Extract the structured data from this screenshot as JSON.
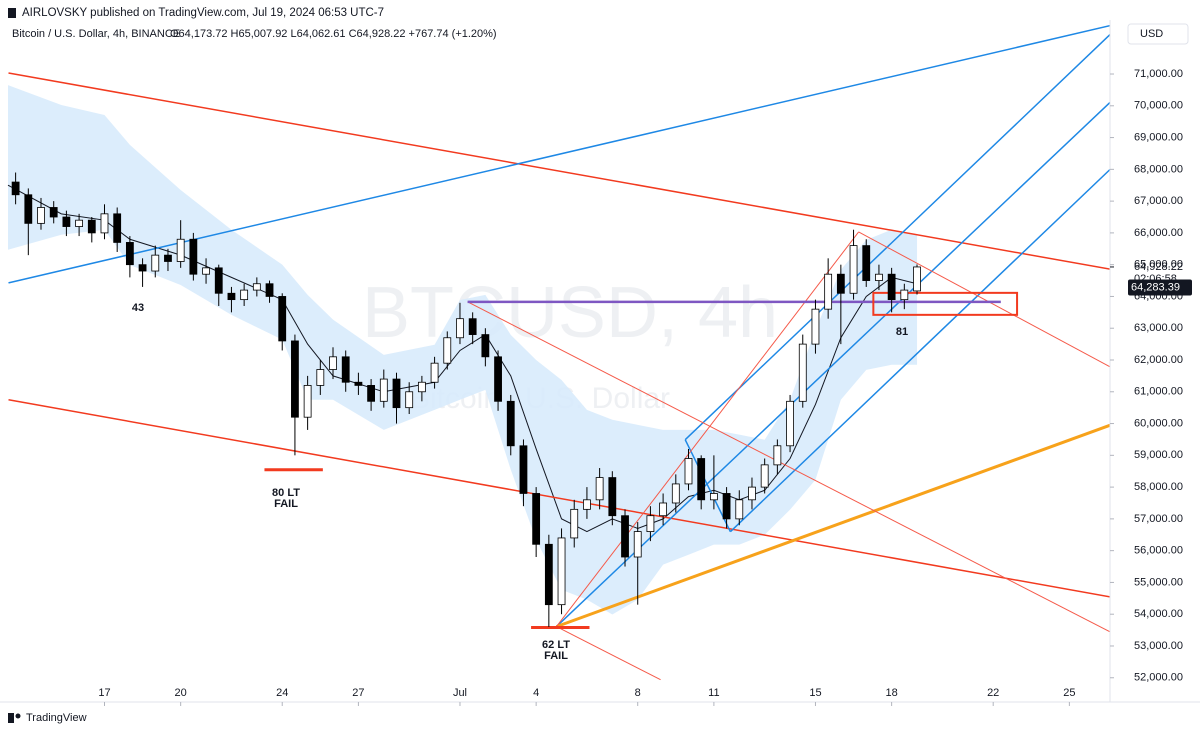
{
  "chart_data": {
    "type": "candlestick",
    "header": "AIRLOVSKY published on TradingView.com, Jul 19, 2024 06:53 UTC-7",
    "symbol": "Bitcoin / U.S. Dollar, 4h, BINANCE",
    "ohlc_legend": "O64,173.72 H65,007.92 L64,062.61 C64,928.22 +767.74 (+1.20%)",
    "watermark": "BTCUSD, 4h",
    "watermark_subtitle": "Bitcoin / U.S. Dollar",
    "currency": "USD",
    "footer": "TradingView",
    "countdown": "02:06:58",
    "price_labels": [
      {
        "value": 64928.22,
        "label": "64,928.22"
      },
      {
        "value": 64283.39,
        "label": "64,283.39"
      }
    ],
    "annotations": [
      "43",
      "80 LT",
      "FAIL",
      "62 LT",
      "FAIL",
      "81"
    ],
    "xlim": [
      13.2,
      56.6
    ],
    "xticks": [
      17,
      20,
      24,
      27,
      {
        "value": 31,
        "label": "Jul"
      },
      {
        "value": 34,
        "label": "4"
      },
      {
        "value": 38,
        "label": "8"
      },
      {
        "value": 41,
        "label": "11"
      },
      {
        "value": 45,
        "label": "15"
      },
      {
        "value": 48,
        "label": "18"
      },
      {
        "value": 52,
        "label": "22"
      },
      {
        "value": 55,
        "label": "25"
      }
    ],
    "ylim": [
      51300,
      72700
    ],
    "yticks": [
      {
        "value": 52000,
        "label": "52,000.00"
      },
      {
        "value": 53000,
        "label": "53,000.00"
      },
      {
        "value": 54000,
        "label": "54,000.00"
      },
      {
        "value": 55000,
        "label": "55,000.00"
      },
      {
        "value": 56000,
        "label": "56,000.00"
      },
      {
        "value": 57000,
        "label": "57,000.00"
      },
      {
        "value": 58000,
        "label": "58,000.00"
      },
      {
        "value": 59000,
        "label": "59,000.00"
      },
      {
        "value": 60000,
        "label": "60,000.00"
      },
      {
        "value": 61000,
        "label": "61,000.00"
      },
      {
        "value": 62000,
        "label": "62,000.00"
      },
      {
        "value": 63000,
        "label": "63,000.00"
      },
      {
        "value": 64000,
        "label": "64,000.00"
      },
      {
        "value": 65000,
        "label": "65,000.00"
      },
      {
        "value": 66000,
        "label": "66,000.00"
      },
      {
        "value": 67000,
        "label": "67,000.00"
      },
      {
        "value": 68000,
        "label": "68,000.00"
      },
      {
        "value": 69000,
        "label": "69,000.00"
      },
      {
        "value": 70000,
        "label": "70,000.00"
      },
      {
        "value": 71000,
        "label": "71,000.00"
      }
    ],
    "grid": false,
    "up_color": "#ffffff",
    "down_color": "#000000",
    "wick_color": "#000000",
    "candles": {
      "x": [
        13.5,
        14,
        14.5,
        15,
        15.5,
        16,
        16.5,
        17,
        17.5,
        18,
        18.5,
        19,
        19.5,
        20,
        20.5,
        21,
        21.5,
        22,
        22.5,
        23,
        23.5,
        24,
        24.5,
        25,
        25.5,
        26,
        26.5,
        27,
        27.5,
        28,
        28.5,
        29,
        29.5,
        30,
        30.5,
        31,
        31.5,
        32,
        32.5,
        33,
        33.5,
        34,
        34.5,
        35,
        35.5,
        36,
        36.5,
        37,
        37.5,
        38,
        38.5,
        39,
        39.5,
        40,
        40.5,
        41,
        41.5,
        42,
        42.5,
        43,
        43.5,
        44,
        44.5,
        45,
        45.5,
        46,
        46.5,
        47,
        47.5,
        48,
        48.5,
        49
      ],
      "open": [
        67600,
        67200,
        66300,
        66800,
        66500,
        66200,
        66400,
        66000,
        66600,
        65700,
        65000,
        64800,
        65300,
        65100,
        65800,
        64700,
        64900,
        64100,
        63900,
        64200,
        64400,
        64000,
        62600,
        60200,
        61200,
        61700,
        62100,
        61300,
        61200,
        60700,
        61400,
        60500,
        61000,
        61300,
        61900,
        62700,
        63300,
        62800,
        62100,
        60700,
        59300,
        57800,
        56200,
        54300,
        56400,
        57300,
        57600,
        58300,
        57100,
        55800,
        56600,
        57100,
        57500,
        58100,
        58900,
        57600,
        57800,
        57000,
        57600,
        58000,
        58700,
        59300,
        60700,
        62500,
        63600,
        64700,
        64100,
        65600,
        64500,
        64700,
        63900,
        64173.72
      ],
      "high": [
        67900,
        67400,
        67100,
        67000,
        66700,
        66600,
        66500,
        66900,
        66800,
        65900,
        65200,
        65600,
        65500,
        66400,
        66000,
        65200,
        65000,
        64300,
        64400,
        64600,
        64500,
        64100,
        62800,
        61500,
        62000,
        62400,
        62300,
        61600,
        61400,
        61700,
        61600,
        61300,
        61500,
        62100,
        62900,
        63800,
        63500,
        63000,
        62300,
        60900,
        59500,
        58000,
        56500,
        56700,
        57600,
        58000,
        58600,
        58500,
        57300,
        56900,
        57400,
        57800,
        58400,
        59200,
        59000,
        59000,
        58000,
        57900,
        58300,
        58900,
        59500,
        60900,
        62800,
        63900,
        65200,
        65000,
        66100,
        65800,
        65000,
        64900,
        64400,
        65007.92
      ],
      "low": [
        66900,
        65300,
        66100,
        66300,
        65900,
        65900,
        65700,
        65800,
        65400,
        64600,
        64300,
        64600,
        64800,
        64900,
        64500,
        64400,
        63700,
        63500,
        63700,
        64000,
        63800,
        62300,
        59000,
        59800,
        60900,
        61400,
        61000,
        60900,
        60400,
        60500,
        60000,
        60300,
        60700,
        61100,
        61700,
        62500,
        62500,
        61800,
        60400,
        59000,
        57400,
        55800,
        53600,
        54000,
        56100,
        57000,
        57300,
        56800,
        55500,
        54300,
        56300,
        56800,
        57200,
        57900,
        57300,
        57300,
        56700,
        56800,
        57300,
        57800,
        58400,
        59100,
        60500,
        62200,
        63300,
        62500,
        63900,
        64300,
        64200,
        63500,
        63600,
        64062.61
      ],
      "close": [
        67200,
        66300,
        66800,
        66500,
        66200,
        66400,
        66000,
        66600,
        65700,
        65000,
        64800,
        65300,
        65100,
        65800,
        64700,
        64900,
        64100,
        63900,
        64200,
        64400,
        64000,
        62600,
        60200,
        61200,
        61700,
        62100,
        61300,
        61200,
        60700,
        61400,
        60500,
        61000,
        61300,
        61900,
        62700,
        63300,
        62800,
        62100,
        60700,
        59300,
        57800,
        56200,
        54300,
        56400,
        57300,
        57600,
        58300,
        57100,
        55800,
        56600,
        57100,
        57500,
        58100,
        58900,
        57600,
        57800,
        57000,
        57600,
        58000,
        58700,
        59300,
        60700,
        62500,
        63600,
        64700,
        64100,
        65600,
        64500,
        64700,
        63900,
        64200,
        64928.22
      ]
    },
    "overlay": {
      "x": [
        13.2,
        15.3,
        17,
        18,
        20,
        22,
        24,
        25,
        26,
        28,
        30,
        31,
        32,
        33,
        34,
        35,
        36,
        37,
        38,
        39,
        40,
        41,
        42,
        43,
        44,
        45,
        46,
        47,
        48,
        49
      ],
      "upper": [
        70650,
        70025,
        69710,
        68770,
        67350,
        66100,
        65000,
        64050,
        63270,
        62160,
        62480,
        63890,
        64050,
        62790,
        62000,
        61370,
        60430,
        60120,
        59960,
        59800,
        59800,
        59800,
        59650,
        59490,
        60750,
        62950,
        64840,
        65780,
        66100,
        65940
      ],
      "lower": [
        65470,
        65940,
        66100,
        64990,
        64360,
        63420,
        62640,
        60750,
        60750,
        59800,
        60430,
        60750,
        61060,
        58550,
        56340,
        54770,
        54460,
        53990,
        54460,
        55560,
        55870,
        56190,
        56190,
        56500,
        57290,
        58230,
        60750,
        61690,
        61850,
        61850
      ],
      "ma": [
        67500,
        66600,
        66400,
        65800,
        65300,
        64600,
        63900,
        62500,
        61500,
        61000,
        61300,
        62300,
        62800,
        61500,
        59200,
        57000,
        56600,
        57000,
        56700,
        57000,
        57700,
        57900,
        57600,
        57900,
        58900,
        60600,
        62700,
        64000,
        64600,
        64400
      ],
      "fill": "#d6eafb",
      "ma_color": "#131722"
    },
    "drawings": [
      {
        "shape": "line",
        "x": [
          13.22,
          57.2
        ],
        "y": [
          71031,
          64774
        ],
        "color": "#f23a1f",
        "width": 1.5
      },
      {
        "shape": "line",
        "x": [
          13.22,
          57.2
        ],
        "y": [
          60749,
          54460
        ],
        "color": "#f23a1f",
        "width": 1.5
      },
      {
        "shape": "line",
        "x": [
          13.22,
          57.2
        ],
        "y": [
          64428,
          72635
        ],
        "color": "#1e88e5",
        "width": 1.5
      },
      {
        "shape": "line",
        "x": [
          39.87,
          57.2
        ],
        "y": [
          59491,
          72698
        ],
        "color": "#1e88e5",
        "width": 1.5
      },
      {
        "shape": "line",
        "x": [
          34.8,
          57.2
        ],
        "y": [
          53610,
          70560
        ],
        "color": "#1e88e5",
        "width": 1.5
      },
      {
        "shape": "line",
        "x": [
          41.65,
          57.2
        ],
        "y": [
          56598,
          68453
        ],
        "color": "#1e88e5",
        "width": 1.5
      },
      {
        "shape": "line",
        "x": [
          39.87,
          41.65
        ],
        "y": [
          59491,
          56598
        ],
        "color": "#1e88e5",
        "width": 1.5
      },
      {
        "shape": "line",
        "x": [
          34.8,
          57.2
        ],
        "y": [
          53610,
          60120
        ],
        "color": "#f7a21b",
        "width": 3
      },
      {
        "shape": "line",
        "x": [
          31.3,
          57.2
        ],
        "y": [
          63830,
          53200
        ],
        "color": "#f55a4a",
        "width": 1
      },
      {
        "shape": "line",
        "x": [
          34.8,
          46.7
        ],
        "y": [
          53610,
          66030
        ],
        "color": "#f55a4a",
        "width": 1
      },
      {
        "shape": "line",
        "x": [
          46.7,
          57.2
        ],
        "y": [
          66030,
          61530
        ],
        "color": "#f55a4a",
        "width": 1
      },
      {
        "shape": "line",
        "x": [
          34.8,
          38.9
        ],
        "y": [
          53610,
          51940
        ],
        "color": "#f55a4a",
        "width": 1
      },
      {
        "shape": "line",
        "x": [
          31.3,
          52.3
        ],
        "y": [
          63830,
          63830
        ],
        "color": "#7e57c2",
        "width": 2.5
      },
      {
        "shape": "line",
        "x": [
          23.3,
          25.6
        ],
        "y": [
          58547,
          58547
        ],
        "color": "#f23a1f",
        "width": 3
      },
      {
        "shape": "line",
        "x": [
          33.8,
          36.1
        ],
        "y": [
          53580,
          53580
        ],
        "color": "#f23a1f",
        "width": 3
      },
      {
        "shape": "rect",
        "x": [
          47.28,
          52.94
        ],
        "y": [
          64113,
          63421
        ],
        "color": "#f23a1f",
        "width": 2
      }
    ]
  }
}
